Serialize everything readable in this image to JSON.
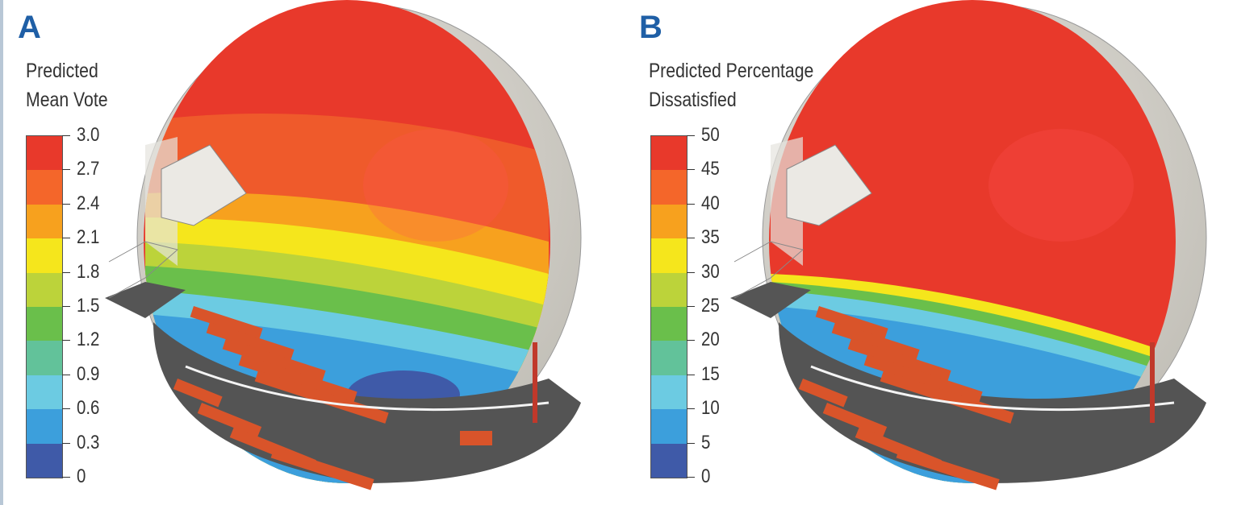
{
  "panels": [
    {
      "letter": "A",
      "legend_title": [
        "Predicted",
        "Mean Vote"
      ],
      "scale_ticks": [
        "3.0",
        "2.7",
        "2.4",
        "2.1",
        "1.8",
        "1.5",
        "1.2",
        "0.9",
        "0.6",
        "0.3",
        "0"
      ]
    },
    {
      "letter": "B",
      "legend_title": [
        "Predicted Percentage",
        "Dissatisfied"
      ],
      "scale_ticks": [
        "50",
        "45",
        "40",
        "35",
        "30",
        "25",
        "20",
        "15",
        "10",
        "5",
        "0"
      ]
    }
  ],
  "colors": {
    "scale_bands_top_to_bottom": [
      "#e8392b",
      "#f4662a",
      "#f7a11e",
      "#f5e61c",
      "#bcd33a",
      "#6abf4b",
      "#62c29a",
      "#6ccbe2",
      "#3c9fdc",
      "#3f5aa8"
    ],
    "accent": "#1f5fa6",
    "dome_shell": "#d4d2cb",
    "floor": "#545454",
    "seats": "#d9542a"
  }
}
